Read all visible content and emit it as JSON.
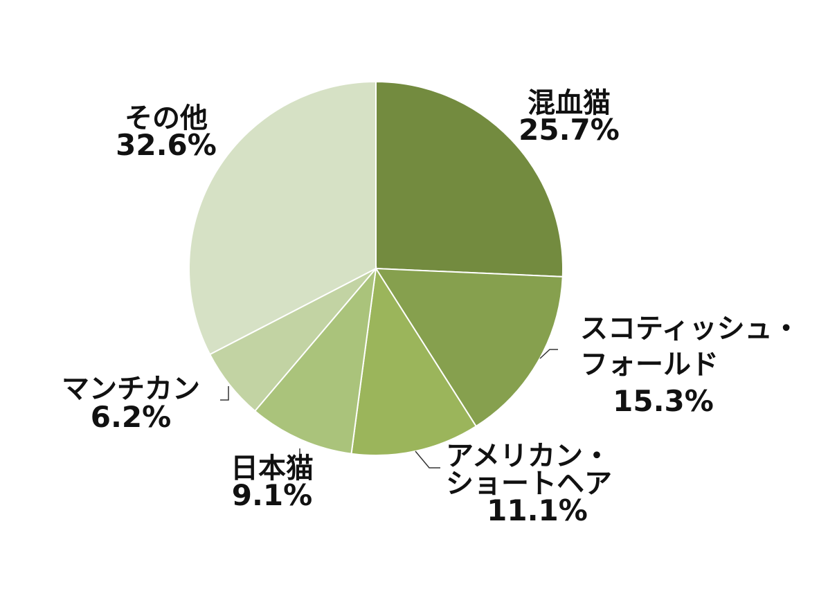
{
  "chart_data": {
    "type": "pie",
    "start_angle_deg": 0,
    "direction": "clockwise",
    "slices": [
      {
        "label": "混血猫",
        "value": 25.7,
        "value_label": "25.7%",
        "color": "#738b3f"
      },
      {
        "label": "スコティッシュ・フォールド",
        "lines": [
          "スコティッシュ・",
          "フォールド"
        ],
        "value": 15.3,
        "value_label": "15.3%",
        "color": "#86a04e"
      },
      {
        "label": "アメリカン・ショートヘア",
        "lines": [
          "アメリカン・",
          "ショートヘア"
        ],
        "value": 11.1,
        "value_label": "11.1%",
        "color": "#9bb55b"
      },
      {
        "label": "日本猫",
        "value": 9.1,
        "value_label": "9.1%",
        "color": "#aac37b"
      },
      {
        "label": "マンチカン",
        "value": 6.2,
        "value_label": "6.2%",
        "color": "#c2d3a3"
      },
      {
        "label": "その他",
        "value": 32.6,
        "value_label": "32.6%",
        "color": "#d6e1c5"
      }
    ]
  }
}
